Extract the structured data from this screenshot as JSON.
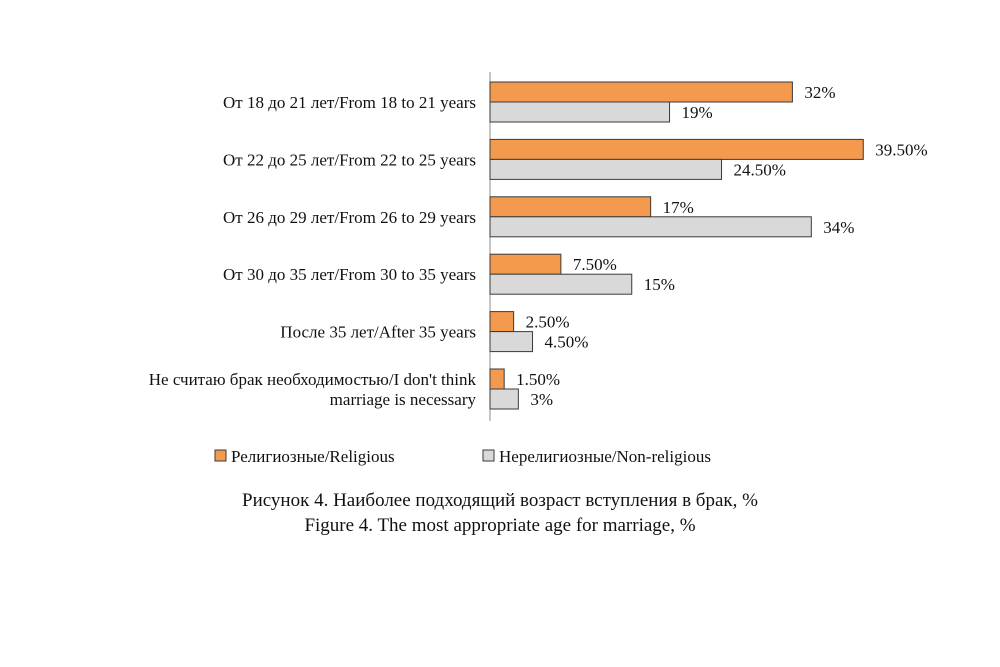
{
  "chart_data": {
    "type": "bar",
    "orientation": "horizontal",
    "categories": [
      "От 18 до 21 лет/From 18 to 21 years",
      "От 22 до 25 лет/From 22 to 25 years",
      "От 26 до 29 лет/From 26 to 29 years",
      "От 30 до 35 лет/From 30 to 35 years",
      "После 35 лет/After 35 years",
      "Не считаю брак необходимостью/I don't think marriage is necessary"
    ],
    "category_label_lines": [
      [
        "От 18 до 21 лет/From 18 to 21 years"
      ],
      [
        "От 22 до 25 лет/From 22 to 25 years"
      ],
      [
        "От 26 до 29 лет/From 26 to 29 years"
      ],
      [
        "От 30 до 35 лет/From 30 to 35 years"
      ],
      [
        "После 35 лет/After 35 years"
      ],
      [
        "Не считаю брак необходимостью/I don't think",
        "marriage is necessary"
      ]
    ],
    "series": [
      {
        "name": "Религиозные/Religious",
        "color": "#f39a4f",
        "values": [
          32,
          39.5,
          17,
          7.5,
          2.5,
          1.5
        ],
        "labels": [
          "32%",
          "39.50%",
          "17%",
          "7.50%",
          "2.50%",
          "1.50%"
        ]
      },
      {
        "name": "Нерелигиозные/Non-religious",
        "color": "#d9d9d9",
        "values": [
          19,
          24.5,
          34,
          15,
          4.5,
          3
        ],
        "labels": [
          "19%",
          "24.50%",
          "34%",
          "15%",
          "4.50%",
          "3%"
        ]
      }
    ],
    "xlim": [
      0,
      40
    ],
    "unit": "%",
    "grid": false,
    "legend_position": "bottom",
    "title": ""
  },
  "caption": {
    "line1": "Рисунок 4. Наиболее подходящий возраст вступления в брак, %",
    "line2": "Figure 4. The most appropriate age for marriage, %"
  }
}
